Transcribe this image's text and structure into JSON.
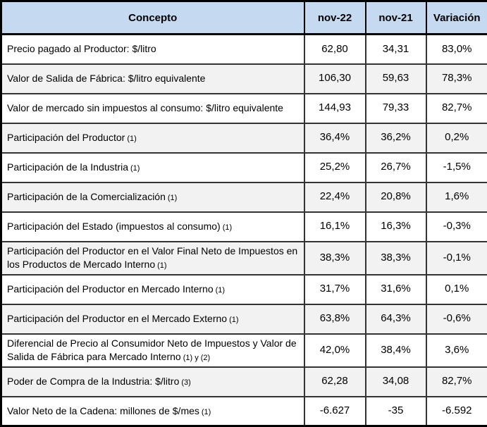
{
  "table": {
    "headers": {
      "concepto": "Concepto",
      "nov22": "nov-22",
      "nov21": "nov-21",
      "variacion": "Variación"
    },
    "rows": [
      {
        "label": "Precio pagado al Productor: $/litro",
        "note": "",
        "nov22": "62,80",
        "nov21": "34,31",
        "variacion": "83,0%"
      },
      {
        "label": "Valor de Salida de Fábrica: $/litro equivalente",
        "note": "",
        "nov22": "106,30",
        "nov21": "59,63",
        "variacion": "78,3%"
      },
      {
        "label": "Valor de mercado sin impuestos al consumo: $/litro equivalente",
        "note": "",
        "nov22": "144,93",
        "nov21": "79,33",
        "variacion": "82,7%"
      },
      {
        "label": "Participación del Productor",
        "note": "(1)",
        "nov22": "36,4%",
        "nov21": "36,2%",
        "variacion": "0,2%"
      },
      {
        "label": "Participación de la Industria",
        "note": "(1)",
        "nov22": "25,2%",
        "nov21": "26,7%",
        "variacion": "-1,5%"
      },
      {
        "label": "Participación de la Comercialización",
        "note": "(1)",
        "nov22": "22,4%",
        "nov21": "20,8%",
        "variacion": "1,6%"
      },
      {
        "label": "Participación del Estado (impuestos al consumo)",
        "note": "(1)",
        "nov22": "16,1%",
        "nov21": "16,3%",
        "variacion": "-0,3%"
      },
      {
        "label": "Participación del Productor en el Valor Final Neto de Impuestos en los Productos de Mercado Interno",
        "note": "(1)",
        "nov22": "38,3%",
        "nov21": "38,3%",
        "variacion": "-0,1%"
      },
      {
        "label": "Participación del Productor en Mercado Interno",
        "note": "(1)",
        "nov22": "31,7%",
        "nov21": "31,6%",
        "variacion": "0,1%"
      },
      {
        "label": "Participación del Productor en el Mercado Externo",
        "note": "(1)",
        "nov22": "63,8%",
        "nov21": "64,3%",
        "variacion": "-0,6%"
      },
      {
        "label": "Diferencial de Precio al Consumidor Neto de Impuestos y Valor de Salida de Fábrica para Mercado Interno",
        "note": "(1) y (2)",
        "nov22": "42,0%",
        "nov21": "38,4%",
        "variacion": "3,6%"
      },
      {
        "label": "Poder de Compra de la Industria: $/litro",
        "note": "(3)",
        "nov22": "62,28",
        "nov21": "34,08",
        "variacion": "82,7%"
      },
      {
        "label": "Valor Neto de la Cadena: millones de $/mes",
        "note": "(1)",
        "nov22": "-6.627",
        "nov21": "-35",
        "variacion": "-6.592"
      }
    ]
  },
  "colors": {
    "header_bg": "#c5d9f1",
    "row_alt_bg": "#f2f2f2",
    "border": "#000000"
  }
}
